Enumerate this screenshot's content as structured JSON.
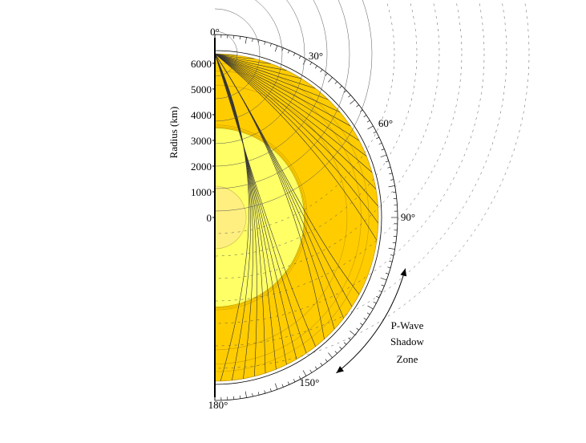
{
  "diagram": {
    "angle_labels": [
      {
        "deg": 0,
        "text": "0°"
      },
      {
        "deg": 30,
        "text": "30°"
      },
      {
        "deg": 60,
        "text": "60°"
      },
      {
        "deg": 90,
        "text": "90°"
      },
      {
        "deg": 150,
        "text": "150°"
      },
      {
        "deg": 180,
        "text": "180°"
      }
    ],
    "radius_axis": {
      "title": "Radius (km)",
      "ticks": [
        {
          "km": 6000,
          "text": "6000"
        },
        {
          "km": 5000,
          "text": "5000"
        },
        {
          "km": 4000,
          "text": "4000"
        },
        {
          "km": 3000,
          "text": "3000"
        },
        {
          "km": 2000,
          "text": "2000"
        },
        {
          "km": 1000,
          "text": "1000"
        },
        {
          "km": 0,
          "text": "0"
        }
      ]
    },
    "shadow_zone": {
      "lines": [
        "P-Wave",
        "Shadow",
        "Zone"
      ],
      "from_deg": 105,
      "to_deg": 142
    },
    "layers": [
      {
        "name": "crust-mantle",
        "outer_km": 6371,
        "color": "#ffcc00"
      },
      {
        "name": "outer-core",
        "outer_km": 3480,
        "color": "#ffff66"
      },
      {
        "name": "inner-core",
        "outer_km": 1220,
        "color": "#ffef80"
      }
    ],
    "scale": {
      "outer_km": 6371,
      "ring_color": "#ffffff"
    }
  }
}
